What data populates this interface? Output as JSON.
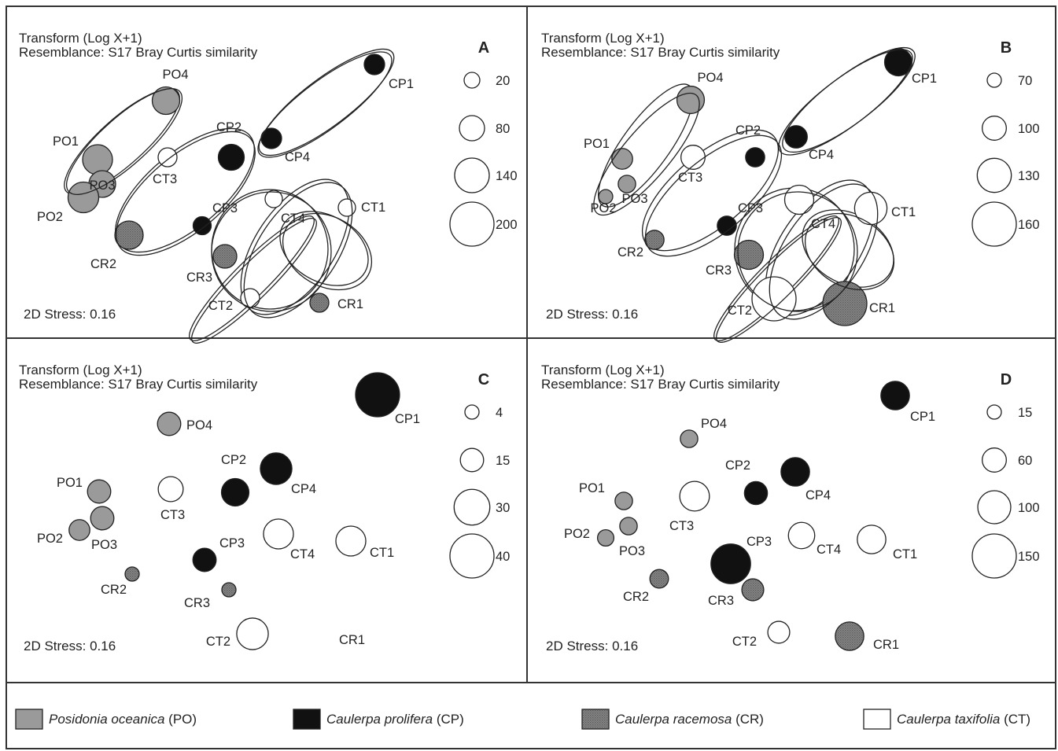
{
  "chart_data": {
    "type": "scatter",
    "subtype": "nMDS bubble plot",
    "panels": [
      {
        "id": "A",
        "transform": "Transform (Log X+1)",
        "resemblance": "Resemblance: S17 Bray Curtis similarity",
        "stress": "2D Stress: 0.16",
        "bubble_scale": [
          "20",
          "80",
          "140",
          "200"
        ],
        "points": [
          {
            "label": "PO4",
            "group": "PO",
            "value": 95
          },
          {
            "label": "PO1",
            "group": "PO",
            "value": 110
          },
          {
            "label": "PO3",
            "group": "PO",
            "value": 90
          },
          {
            "label": "PO2",
            "group": "PO",
            "value": 115
          },
          {
            "label": "CP1",
            "group": "CP",
            "value": 50
          },
          {
            "label": "CP4",
            "group": "CP",
            "value": 50
          },
          {
            "label": "CP2",
            "group": "CP",
            "value": 85
          },
          {
            "label": "CP3",
            "group": "CP",
            "value": 35
          },
          {
            "label": "CT3",
            "group": "CT",
            "value": 40
          },
          {
            "label": "CT4",
            "group": "CT",
            "value": 30
          },
          {
            "label": "CT1",
            "group": "CT",
            "value": 30
          },
          {
            "label": "CT2",
            "group": "CT",
            "value": 40
          },
          {
            "label": "CR2",
            "group": "CR",
            "value": 100
          },
          {
            "label": "CR3",
            "group": "CR",
            "value": 70
          },
          {
            "label": "CR1",
            "group": "CR",
            "value": 40
          }
        ]
      },
      {
        "id": "B",
        "transform": "Transform (Log X+1)",
        "resemblance": "Resemblance: S17 Bray Curtis similarity",
        "stress": "2D Stress: 0.16",
        "bubble_scale": [
          "70",
          "100",
          "130",
          "160"
        ],
        "points": [
          {
            "label": "PO4",
            "group": "PO",
            "value": 110
          },
          {
            "label": "PO1",
            "group": "PO",
            "value": 90
          },
          {
            "label": "PO3",
            "group": "PO",
            "value": 80
          },
          {
            "label": "PO2",
            "group": "PO",
            "value": 55
          },
          {
            "label": "CP1",
            "group": "CP",
            "value": 110
          },
          {
            "label": "CP4",
            "group": "CP",
            "value": 95
          },
          {
            "label": "CP2",
            "group": "CP",
            "value": 85
          },
          {
            "label": "CP3",
            "group": "CP",
            "value": 85
          },
          {
            "label": "CT3",
            "group": "CT",
            "value": 100
          },
          {
            "label": "CT4",
            "group": "CT",
            "value": 115
          },
          {
            "label": "CT1",
            "group": "CT",
            "value": 125
          },
          {
            "label": "CT2",
            "group": "CT",
            "value": 160
          },
          {
            "label": "CR2",
            "group": "CR",
            "value": 85
          },
          {
            "label": "CR3",
            "group": "CR",
            "value": 115
          },
          {
            "label": "CR1",
            "group": "CR",
            "value": 160
          }
        ]
      },
      {
        "id": "C",
        "transform": "Transform (Log X+1)",
        "resemblance": "Resemblance: S17 Bray Curtis similarity",
        "stress": "2D Stress: 0.16",
        "bubble_scale": [
          "4",
          "15",
          "30",
          "40"
        ],
        "points": [
          {
            "label": "PO4",
            "group": "PO",
            "value": 15
          },
          {
            "label": "PO1",
            "group": "PO",
            "value": 15
          },
          {
            "label": "PO3",
            "group": "PO",
            "value": 15
          },
          {
            "label": "PO2",
            "group": "PO",
            "value": 12
          },
          {
            "label": "CP1",
            "group": "CP",
            "value": 40
          },
          {
            "label": "CP4",
            "group": "CP",
            "value": 25
          },
          {
            "label": "CP2",
            "group": "CP",
            "value": 20
          },
          {
            "label": "CP3",
            "group": "CP",
            "value": 15
          },
          {
            "label": "CT3",
            "group": "CT",
            "value": 17
          },
          {
            "label": "CT4",
            "group": "CT",
            "value": 23
          },
          {
            "label": "CT1",
            "group": "CT",
            "value": 23
          },
          {
            "label": "CT2",
            "group": "CT",
            "value": 25
          },
          {
            "label": "CR2",
            "group": "CR",
            "value": 3
          },
          {
            "label": "CR3",
            "group": "CR",
            "value": 2
          },
          {
            "label": "CR1",
            "group": "CR",
            "value": 0
          }
        ]
      },
      {
        "id": "D",
        "transform": "Transform (Log X+1)",
        "resemblance": "Resemblance: S17 Bray Curtis similarity",
        "stress": "2D Stress: 0.16",
        "bubble_scale": [
          "15",
          "60",
          "100",
          "150"
        ],
        "points": [
          {
            "label": "PO4",
            "group": "PO",
            "value": 30
          },
          {
            "label": "PO1",
            "group": "PO",
            "value": 30
          },
          {
            "label": "PO3",
            "group": "PO",
            "value": 30
          },
          {
            "label": "PO2",
            "group": "PO",
            "value": 25
          },
          {
            "label": "CP1",
            "group": "CP",
            "value": 80
          },
          {
            "label": "CP4",
            "group": "CP",
            "value": 80
          },
          {
            "label": "CP2",
            "group": "CP",
            "value": 55
          },
          {
            "label": "CP3",
            "group": "CP",
            "value": 130
          },
          {
            "label": "CT3",
            "group": "CT",
            "value": 85
          },
          {
            "label": "CT4",
            "group": "CT",
            "value": 70
          },
          {
            "label": "CT1",
            "group": "CT",
            "value": 80
          },
          {
            "label": "CT2",
            "group": "CT",
            "value": 50
          },
          {
            "label": "CR2",
            "group": "CR",
            "value": 35
          },
          {
            "label": "CR3",
            "group": "CR",
            "value": 50
          },
          {
            "label": "CR1",
            "group": "CR",
            "value": 80
          }
        ]
      }
    ],
    "legend": [
      {
        "group": "PO",
        "name": "Posidonia oceanica",
        "abbr": "(PO)",
        "color": "#9a9a9a",
        "fill": "solid"
      },
      {
        "group": "CP",
        "name": "Caulerpa prolifera",
        "abbr": "(CP)",
        "color": "#111111",
        "fill": "solid"
      },
      {
        "group": "CR",
        "name": "Caulerpa racemosa",
        "abbr": "(CR)",
        "color": "#7a7a7a",
        "fill": "hatched"
      },
      {
        "group": "CT",
        "name": "Caulerpa taxifolia",
        "abbr": "(CT)",
        "color": "#ffffff",
        "fill": "solid"
      }
    ]
  }
}
